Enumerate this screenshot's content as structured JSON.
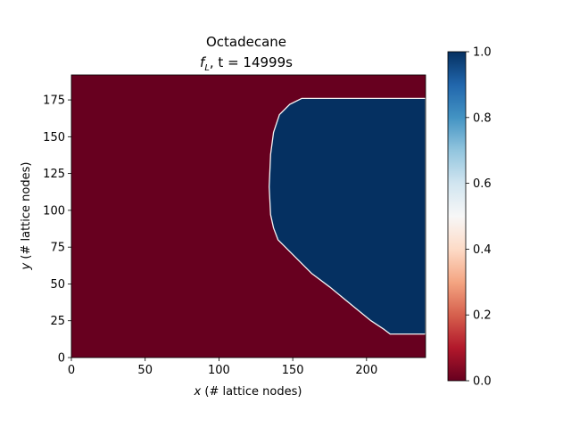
{
  "chart_data": [
    {
      "type": "heatmap",
      "title": "Octadecane",
      "subtitle": {
        "var": "f",
        "sub": "L",
        "eq": ", t = 14999s"
      },
      "xlabel": {
        "var": "x",
        "rest": " (# lattice nodes)"
      },
      "ylabel": {
        "var": "y",
        "rest": " (# lattice nodes)"
      },
      "xlim": [
        0,
        240
      ],
      "ylim": [
        0,
        192
      ],
      "xticks": [
        0,
        50,
        100,
        150,
        200
      ],
      "yticks": [
        0,
        25,
        50,
        75,
        100,
        125,
        150,
        175
      ],
      "grid": false,
      "colormap": "RdBu",
      "background_value": 0.0,
      "liquid_region": {
        "value": 1.0,
        "boundary": [
          [
            240,
            176
          ],
          [
            156,
            176
          ],
          [
            148,
            172
          ],
          [
            141,
            165
          ],
          [
            137,
            153
          ],
          [
            135,
            138
          ],
          [
            134,
            116
          ],
          [
            135,
            97
          ],
          [
            137,
            88
          ],
          [
            140,
            80
          ],
          [
            150,
            70
          ],
          [
            163,
            57
          ],
          [
            175,
            48
          ],
          [
            192,
            34
          ],
          [
            203,
            25
          ],
          [
            212,
            19
          ],
          [
            216,
            16
          ],
          [
            240,
            16
          ]
        ]
      }
    },
    {
      "type": "colorbar",
      "range": [
        0.0,
        1.0
      ],
      "ticks": [
        "0.0",
        "0.2",
        "0.4",
        "0.6",
        "0.8",
        "1.0"
      ],
      "colors": {
        "low": "#67001f",
        "high": "#053061"
      }
    }
  ]
}
